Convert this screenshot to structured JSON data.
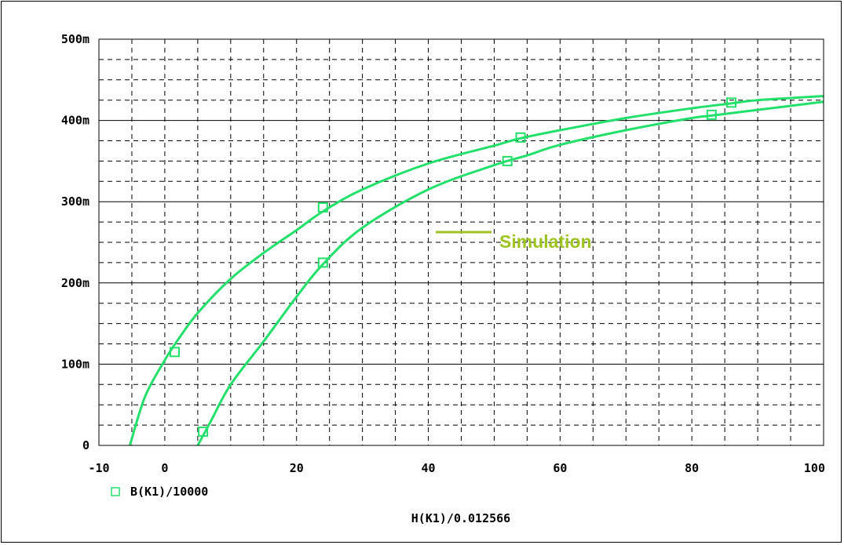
{
  "chart_data": {
    "type": "line",
    "x_range": [
      -10,
      100
    ],
    "y_range": [
      0,
      0.5
    ],
    "x_ticks": [
      -10,
      0,
      20,
      40,
      60,
      80,
      100
    ],
    "x_tick_labels": [
      "-10",
      "0",
      "20",
      "40",
      "60",
      "80",
      "100"
    ],
    "y_ticks": [
      0,
      0.1,
      0.2,
      0.3,
      0.4,
      0.5
    ],
    "y_tick_labels": [
      "0",
      "100m",
      "200m",
      "300m",
      "400m",
      "500m"
    ],
    "xlabel": "H(K1)/0.012566",
    "grid": true,
    "series_color": "#22e06a",
    "marker": "square",
    "legend": {
      "label": "B(K1)/10000",
      "placement": "bottom-left"
    },
    "annotation": {
      "text": "Simulation",
      "color": "#9cc320"
    },
    "series": [
      {
        "points": [
          [
            -5.3,
            0
          ],
          [
            -3,
            0.06
          ],
          [
            0,
            0.105
          ],
          [
            2,
            0.13
          ],
          [
            5,
            0.163
          ],
          [
            10,
            0.205
          ],
          [
            15,
            0.237
          ],
          [
            20,
            0.265
          ],
          [
            24,
            0.288
          ],
          [
            30,
            0.315
          ],
          [
            40,
            0.347
          ],
          [
            50,
            0.369
          ],
          [
            54,
            0.378
          ],
          [
            60,
            0.388
          ],
          [
            70,
            0.403
          ],
          [
            80,
            0.415
          ],
          [
            86,
            0.421
          ],
          [
            90,
            0.425
          ],
          [
            100,
            0.43
          ]
        ],
        "markers": [
          [
            1.5,
            0.115
          ],
          [
            24,
            0.293
          ],
          [
            54,
            0.379
          ],
          [
            86,
            0.422
          ]
        ]
      },
      {
        "points": [
          [
            5,
            0
          ],
          [
            7,
            0.03
          ],
          [
            10,
            0.075
          ],
          [
            15,
            0.128
          ],
          [
            20,
            0.183
          ],
          [
            24,
            0.223
          ],
          [
            30,
            0.268
          ],
          [
            40,
            0.315
          ],
          [
            50,
            0.345
          ],
          [
            55,
            0.357
          ],
          [
            60,
            0.37
          ],
          [
            70,
            0.388
          ],
          [
            80,
            0.403
          ],
          [
            83,
            0.406
          ],
          [
            90,
            0.413
          ],
          [
            100,
            0.423
          ]
        ],
        "markers": [
          [
            5.8,
            0.017
          ],
          [
            24,
            0.225
          ],
          [
            52,
            0.35
          ],
          [
            83,
            0.407
          ]
        ]
      }
    ]
  }
}
